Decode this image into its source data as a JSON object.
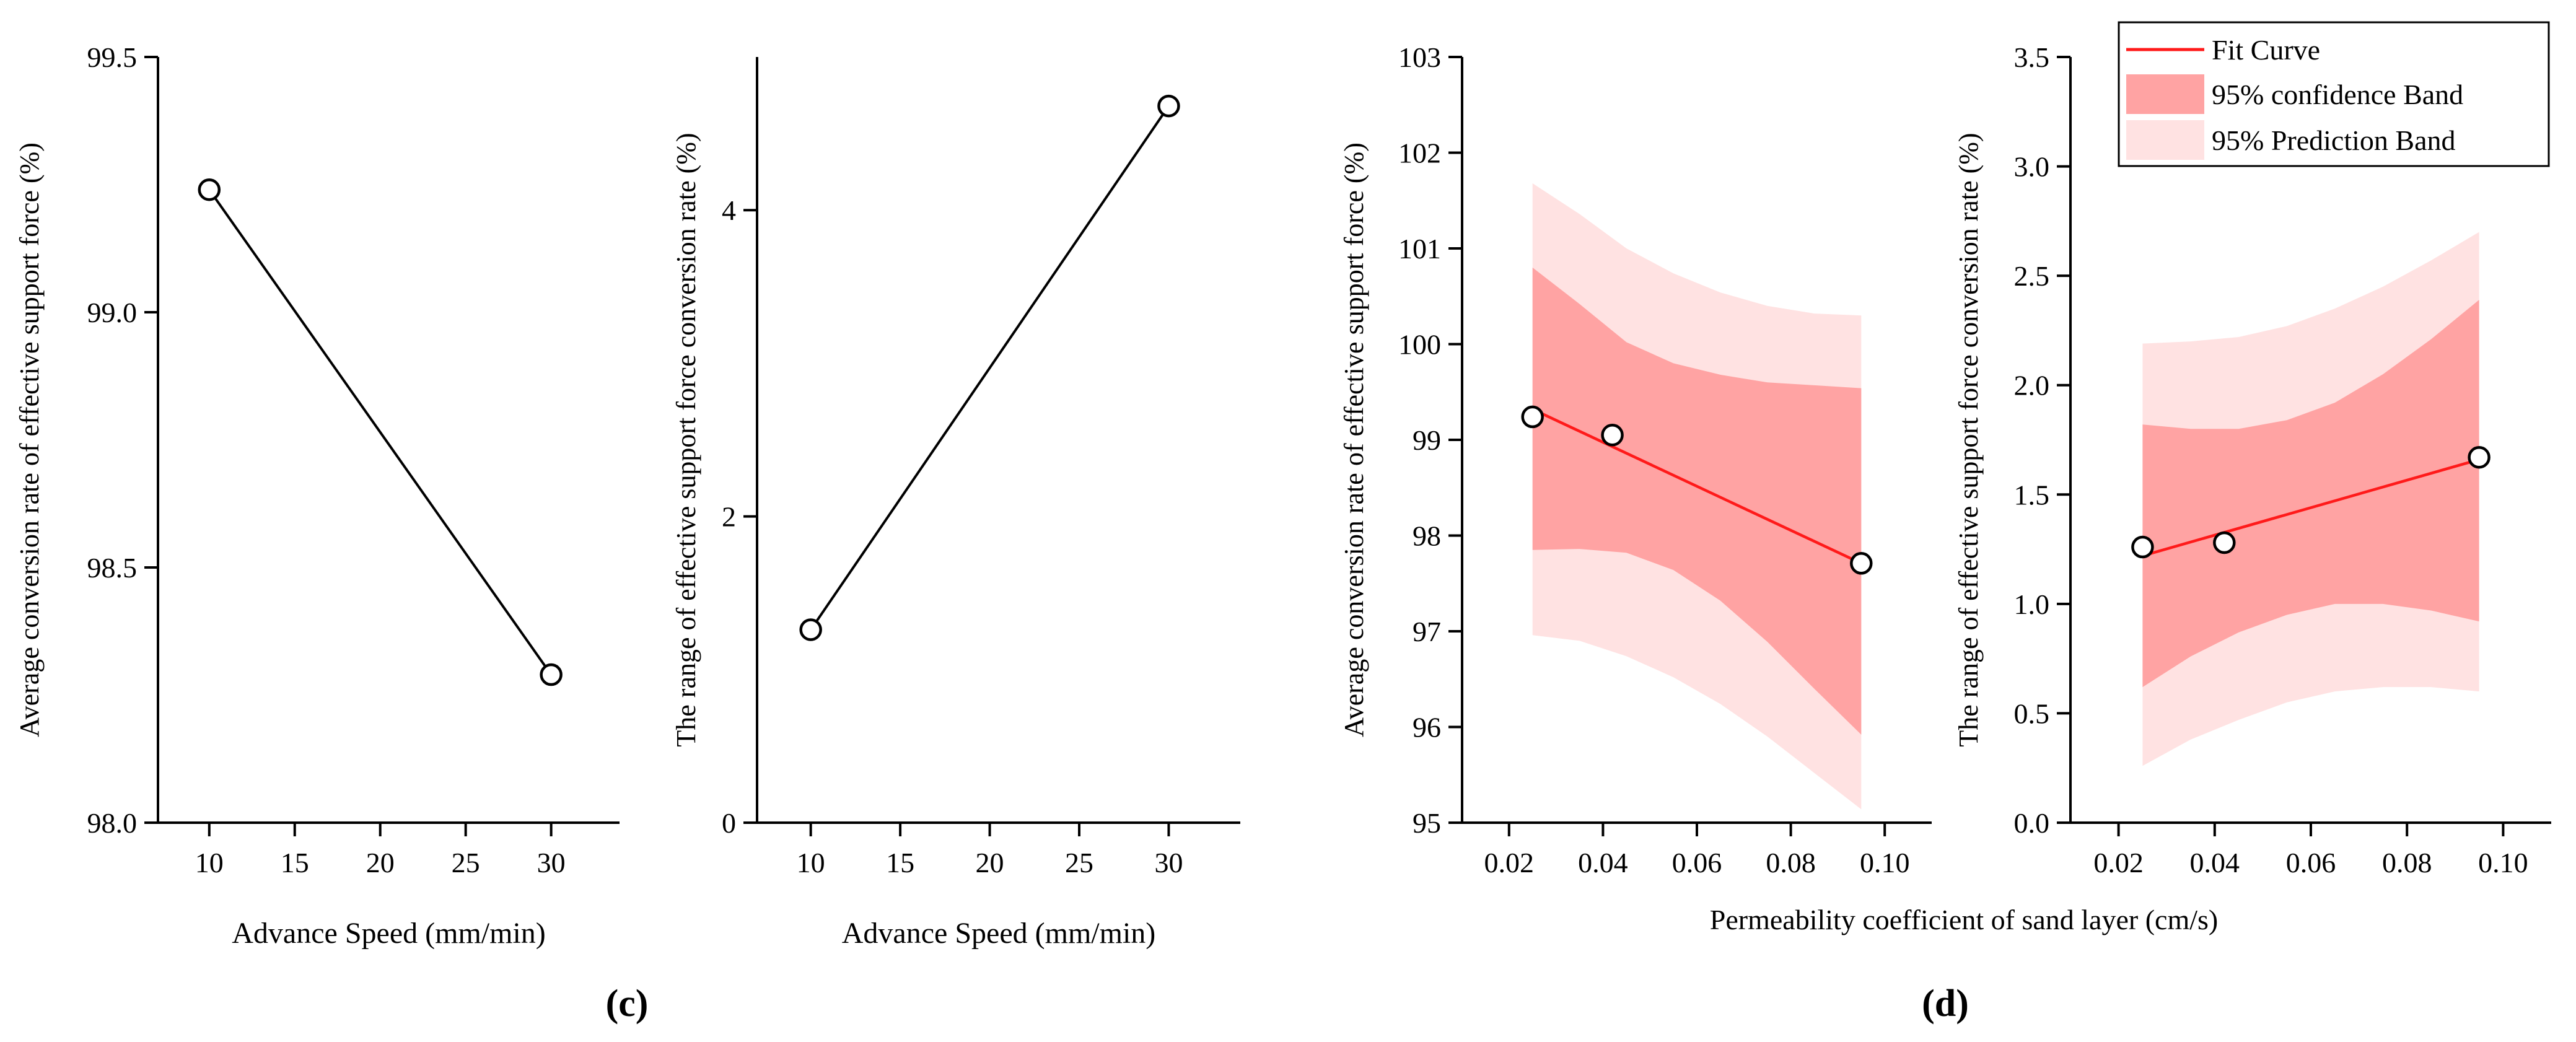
{
  "panels": {
    "c_label": "(c)",
    "d_label": "(d)",
    "d_shared_xlabel": "Permeability coefficient of sand layer (cm/s)"
  },
  "colors": {
    "axis": "#000000",
    "line_black": "#000000",
    "fit_red": "#ff1a1a",
    "confidence_band": "#ffa3a3",
    "prediction_band": "#ffe2e2"
  },
  "chart_data": [
    {
      "id": "c1",
      "type": "line",
      "xlabel": "Advance Speed (mm/min)",
      "ylabel": "Average conversion rate of effective support force (%)",
      "xlim": [
        7,
        34
      ],
      "ylim": [
        98.0,
        99.5
      ],
      "xticks": [
        10,
        15,
        20,
        25,
        30
      ],
      "xtick_labels": [
        "10",
        "15",
        "20",
        "25",
        "30"
      ],
      "yticks": [
        98.0,
        98.5,
        99.0,
        99.5
      ],
      "ytick_labels": [
        "98.0",
        "98.5",
        "99.0",
        "99.5"
      ],
      "series": [
        {
          "x": [
            10,
            30
          ],
          "y": [
            99.24,
            98.29
          ],
          "marker": "open-circle",
          "color": "#000000"
        }
      ]
    },
    {
      "id": "c2",
      "type": "line",
      "xlabel": "Advance Speed (mm/min)",
      "ylabel": "The range of effective support force conversion rate (%)",
      "xlim": [
        7,
        34
      ],
      "ylim": [
        0,
        5
      ],
      "xticks": [
        10,
        15,
        20,
        25,
        30
      ],
      "xtick_labels": [
        "10",
        "15",
        "20",
        "25",
        "30"
      ],
      "yticks": [
        0,
        2,
        4
      ],
      "ytick_labels": [
        "0",
        "2",
        "4"
      ],
      "series": [
        {
          "x": [
            10,
            30
          ],
          "y": [
            1.26,
            4.68
          ],
          "marker": "open-circle",
          "color": "#000000"
        }
      ]
    },
    {
      "id": "d1",
      "type": "scatter",
      "xlabel": "",
      "ylabel": "Average conversion rate of effective support force (%)",
      "xlim": [
        0.01,
        0.11
      ],
      "ylim": [
        95,
        103
      ],
      "xticks": [
        0.02,
        0.04,
        0.06,
        0.08,
        0.1
      ],
      "xtick_labels": [
        "0.02",
        "0.04",
        "0.06",
        "0.08",
        "0.10"
      ],
      "yticks": [
        95,
        96,
        97,
        98,
        99,
        100,
        101,
        102,
        103
      ],
      "ytick_labels": [
        "95",
        "96",
        "97",
        "98",
        "99",
        "100",
        "101",
        "102",
        "103"
      ],
      "points": {
        "x": [
          0.025,
          0.042,
          0.095
        ],
        "y": [
          99.24,
          99.05,
          97.71
        ]
      },
      "fit": {
        "x": [
          0.025,
          0.095
        ],
        "y": [
          99.32,
          97.71
        ]
      },
      "bands": {
        "x": [
          0.025,
          0.035,
          0.045,
          0.055,
          0.065,
          0.075,
          0.085,
          0.095
        ],
        "confidence_upper": [
          100.8,
          100.42,
          100.02,
          99.8,
          99.68,
          99.6,
          99.57,
          99.54
        ],
        "confidence_lower": [
          97.85,
          97.86,
          97.82,
          97.64,
          97.32,
          96.89,
          96.4,
          95.92
        ],
        "prediction_upper": [
          101.68,
          101.36,
          101.0,
          100.74,
          100.54,
          100.4,
          100.32,
          100.3
        ],
        "prediction_lower": [
          96.96,
          96.9,
          96.74,
          96.52,
          96.24,
          95.9,
          95.52,
          95.14
        ]
      }
    },
    {
      "id": "d2",
      "type": "scatter",
      "xlabel": "",
      "ylabel": "The range of effective support force conversion rate (%)",
      "xlim": [
        0.01,
        0.11
      ],
      "ylim": [
        0,
        3.5
      ],
      "xticks": [
        0.02,
        0.04,
        0.06,
        0.08,
        0.1
      ],
      "xtick_labels": [
        "0.02",
        "0.04",
        "0.06",
        "0.08",
        "0.10"
      ],
      "yticks": [
        0,
        0.5,
        1.0,
        1.5,
        2.0,
        2.5,
        3.0,
        3.5
      ],
      "ytick_labels": [
        "0.0",
        "0.5",
        "1.0",
        "1.5",
        "2.0",
        "2.5",
        "3.0",
        "3.5"
      ],
      "points": {
        "x": [
          0.025,
          0.042,
          0.095
        ],
        "y": [
          1.26,
          1.28,
          1.67
        ]
      },
      "fit": {
        "x": [
          0.025,
          0.095
        ],
        "y": [
          1.22,
          1.66
        ]
      },
      "bands": {
        "x": [
          0.025,
          0.035,
          0.045,
          0.055,
          0.065,
          0.075,
          0.085,
          0.095
        ],
        "confidence_upper": [
          1.82,
          1.8,
          1.8,
          1.84,
          1.92,
          2.05,
          2.21,
          2.39
        ],
        "confidence_lower": [
          0.62,
          0.76,
          0.87,
          0.95,
          1.0,
          1.0,
          0.97,
          0.92
        ],
        "prediction_upper": [
          2.19,
          2.2,
          2.22,
          2.27,
          2.35,
          2.45,
          2.57,
          2.7
        ],
        "prediction_lower": [
          0.26,
          0.38,
          0.47,
          0.55,
          0.6,
          0.62,
          0.62,
          0.6
        ]
      },
      "legend": {
        "position": "top-right",
        "entries": [
          "Fit Curve",
          "95% confidence Band",
          "95% Prediction Band"
        ]
      }
    }
  ]
}
